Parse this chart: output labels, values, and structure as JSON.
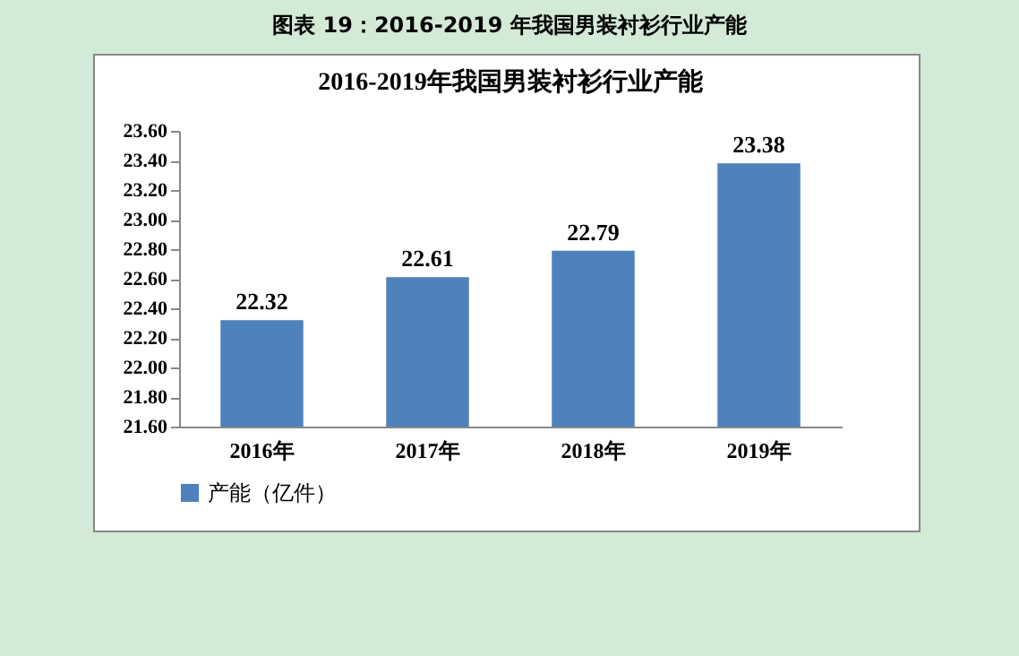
{
  "chart_data": {
    "type": "bar",
    "title": "图表 19：2016-2019 年我国男装衬衫行业产能",
    "subtitle": "2016-2019年我国男装衬衫行业产能",
    "categories": [
      "2016年",
      "2017年",
      "2018年",
      "2019年"
    ],
    "series": [
      {
        "name": "产能（亿件）",
        "color": "#4f81bd",
        "values": [
          22.32,
          22.61,
          22.79,
          23.38
        ]
      }
    ],
    "ylim": [
      21.6,
      23.6
    ],
    "yticks": [
      {
        "value": 21.6,
        "label": "21.60"
      },
      {
        "value": 21.8,
        "label": "21.80"
      },
      {
        "value": 22.0,
        "label": "22.00"
      },
      {
        "value": 22.2,
        "label": "22.20"
      },
      {
        "value": 22.4,
        "label": "22.40"
      },
      {
        "value": 22.6,
        "label": "22.60"
      },
      {
        "value": 22.8,
        "label": "22.80"
      },
      {
        "value": 23.0,
        "label": "23.00"
      },
      {
        "value": 23.2,
        "label": "23.20"
      },
      {
        "value": 23.4,
        "label": "23.40"
      },
      {
        "value": 23.6,
        "label": "23.60"
      }
    ],
    "data_labels": true,
    "grid": false,
    "legend": "bottom"
  }
}
